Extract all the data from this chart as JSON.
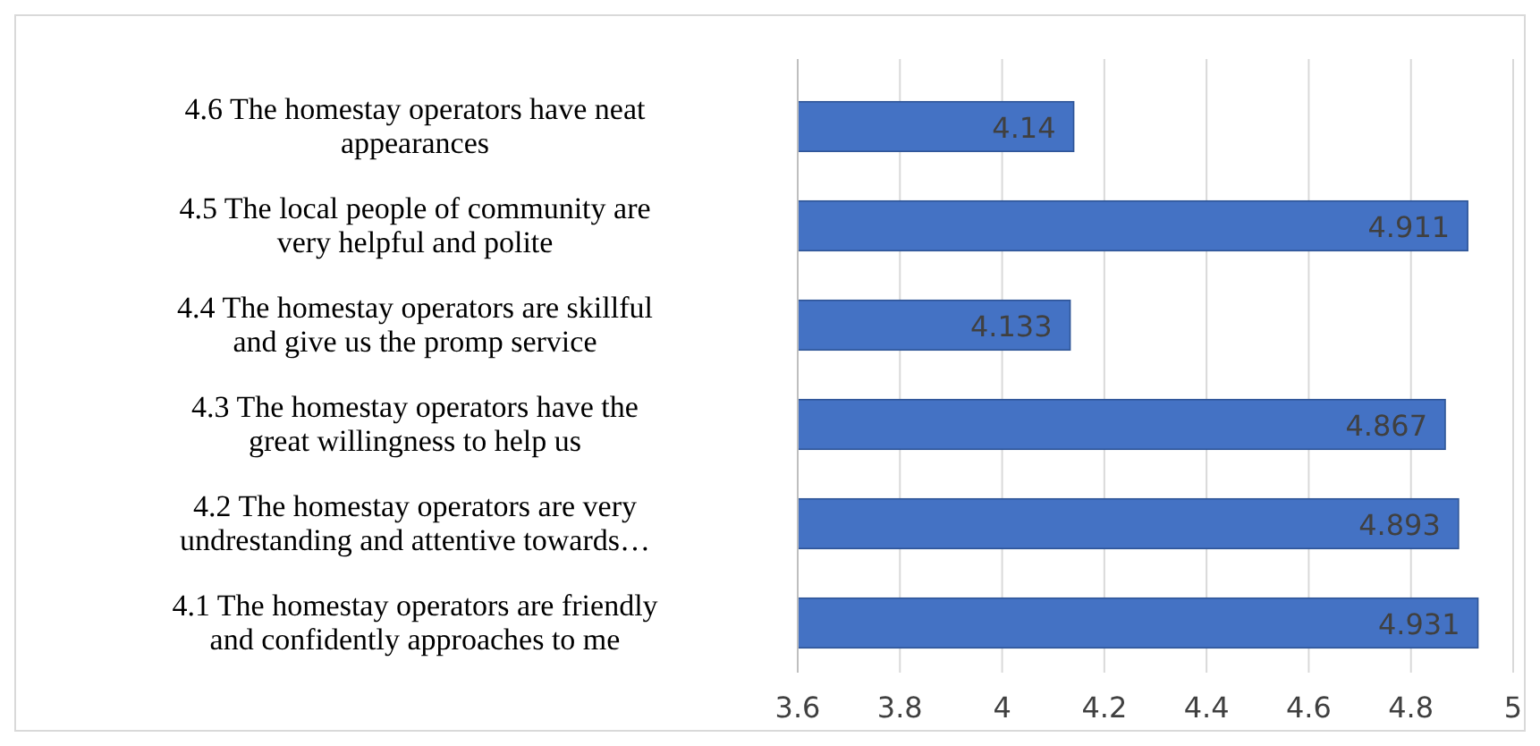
{
  "chart_data": {
    "type": "bar",
    "orientation": "horizontal",
    "categories": [
      "4.6 The homestay operators have neat appearances",
      "4.5 The local people of community are very helpful and polite",
      "4.4 The homestay operators are skillful and give us the promp service",
      "4.3 The homestay operators have the great willingness to help us",
      "4.2 The homestay operators are very undrestanding and attentive towards…",
      "4.1 The homestay operators are friendly and confidently approaches to me"
    ],
    "values": [
      4.14,
      4.911,
      4.133,
      4.867,
      4.893,
      4.931
    ],
    "color": "#4472c4",
    "xlim": [
      3.6,
      5
    ],
    "xticks": [
      3.6,
      3.8,
      4,
      4.2,
      4.4,
      4.6,
      4.8,
      5
    ],
    "grid": "x",
    "data_labels": true
  }
}
